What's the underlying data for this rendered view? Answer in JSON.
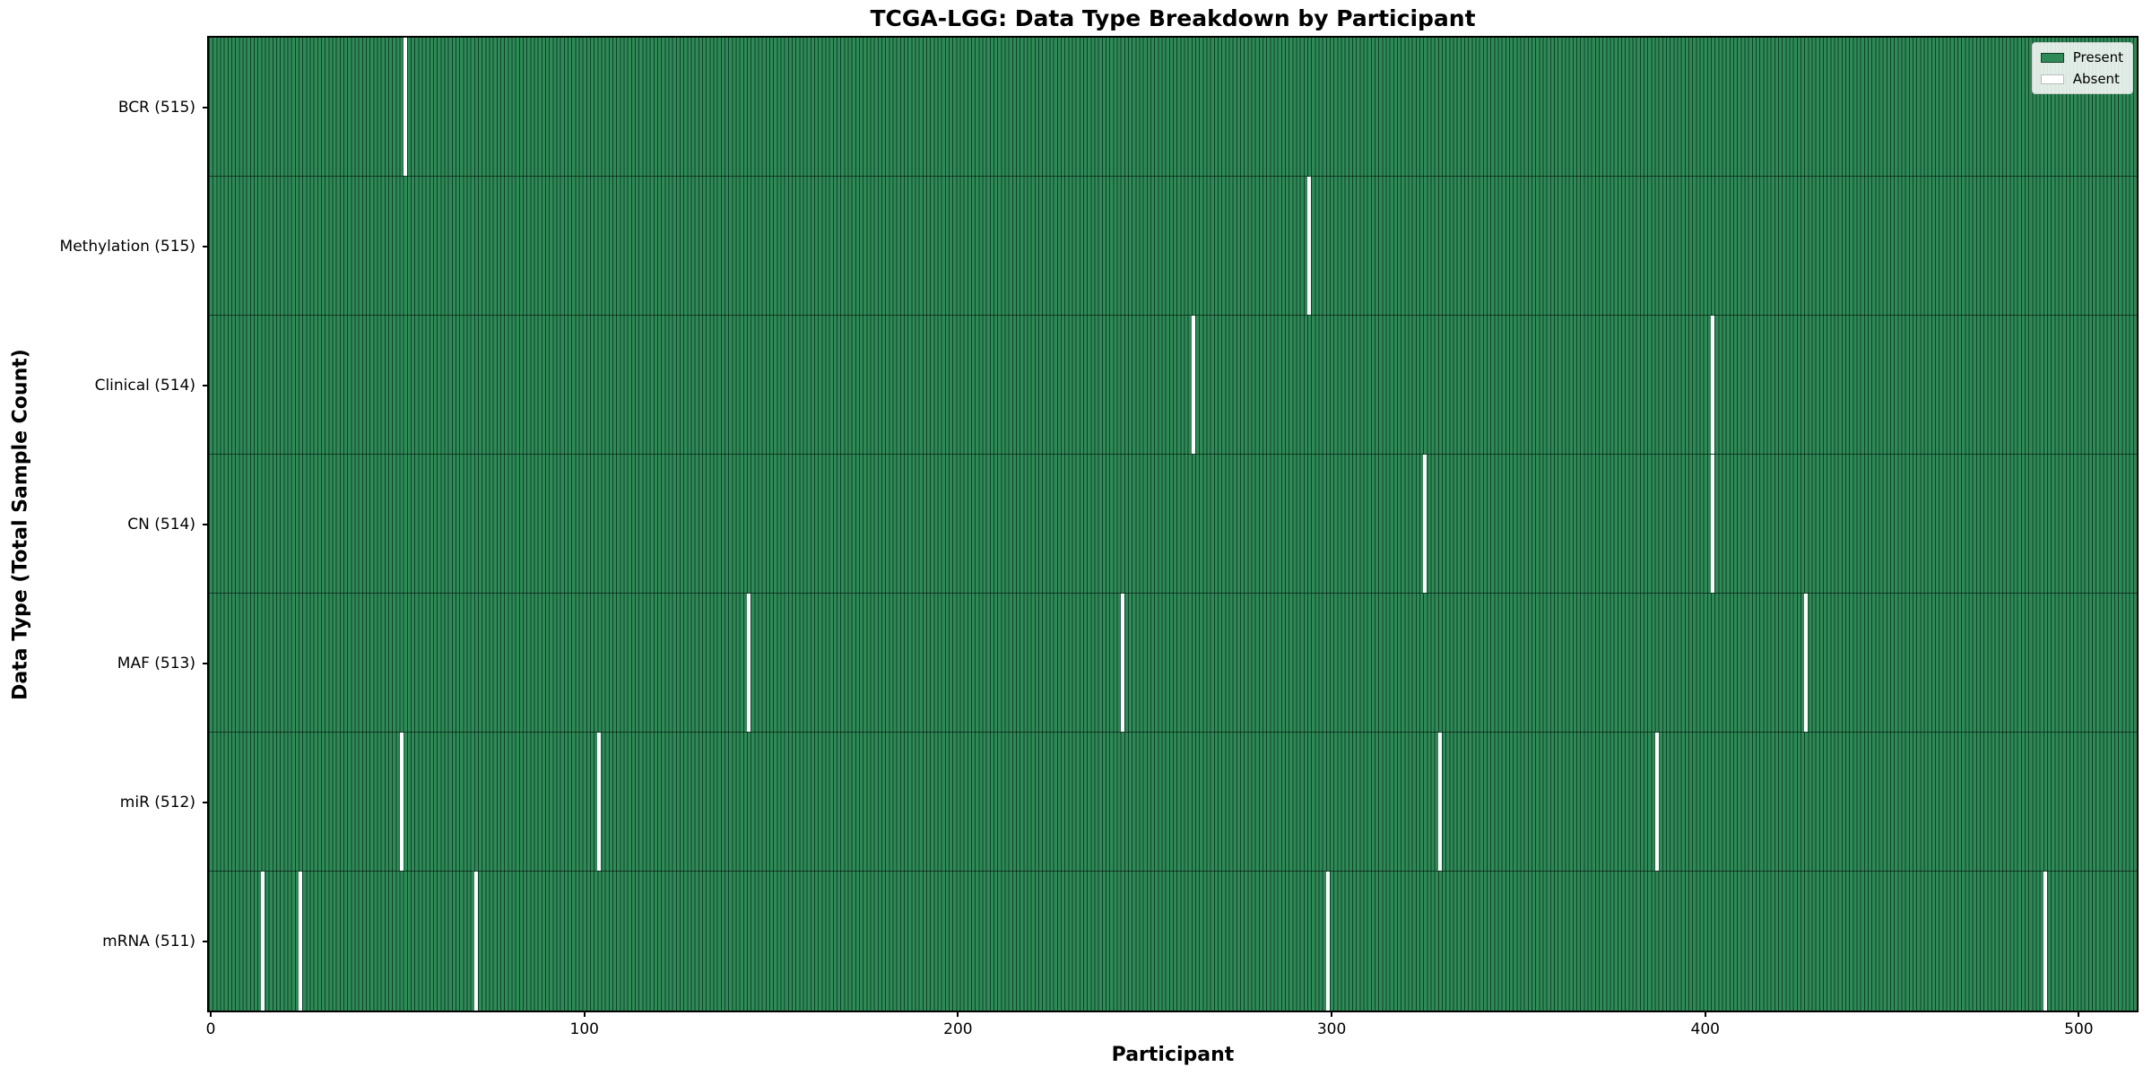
{
  "chart_data": {
    "type": "heatmap",
    "title": "TCGA-LGG: Data Type Breakdown by Participant",
    "xlabel": "Participant",
    "ylabel": "Data Type (Total Sample Count)",
    "n_participants": 516,
    "xlim": [
      -0.5,
      515.5
    ],
    "x_ticks": [
      0,
      100,
      200,
      300,
      400,
      500
    ],
    "grid": false,
    "legend_position": "upper right",
    "legend": [
      {
        "label": "Present",
        "color": "#2e8b57"
      },
      {
        "label": "Absent",
        "color": "#ffffff"
      }
    ],
    "colors": {
      "present_fill": "#2e8b57",
      "bar_edge": "#123f28",
      "absent_fill": "#ffffff",
      "row_separator": "rgba(0,0,0,0.55)"
    },
    "rows": [
      {
        "label": "BCR (515)",
        "count": 515,
        "absent_participants": [
          52
        ]
      },
      {
        "label": "Methylation (515)",
        "count": 515,
        "absent_participants": [
          294
        ]
      },
      {
        "label": "Clinical (514)",
        "count": 514,
        "absent_participants": [
          263,
          402
        ]
      },
      {
        "label": "CN (514)",
        "count": 514,
        "absent_participants": [
          325,
          402
        ]
      },
      {
        "label": "MAF (513)",
        "count": 513,
        "absent_participants": [
          144,
          244,
          427
        ]
      },
      {
        "label": "miR (512)",
        "count": 512,
        "absent_participants": [
          51,
          104,
          329,
          387
        ]
      },
      {
        "label": "mRNA (511)",
        "count": 511,
        "absent_participants": [
          14,
          24,
          71,
          299,
          491
        ]
      }
    ]
  }
}
